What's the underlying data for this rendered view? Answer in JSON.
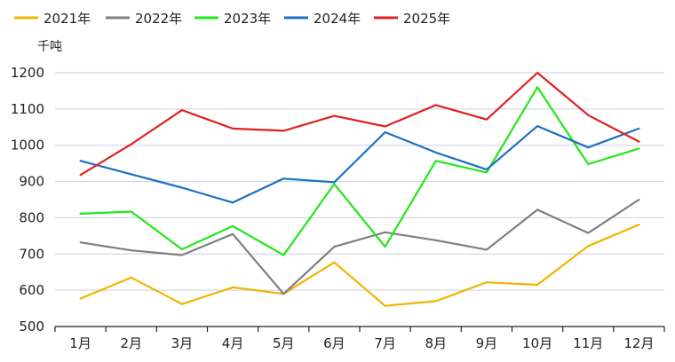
{
  "chart_data": {
    "type": "line",
    "title": "",
    "xlabel": "",
    "ylabel": "千吨",
    "categories": [
      "1月",
      "2月",
      "3月",
      "4月",
      "5月",
      "6月",
      "7月",
      "8月",
      "9月",
      "10月",
      "11月",
      "12月"
    ],
    "ylim": [
      500,
      1200
    ],
    "yticks": [
      500,
      600,
      700,
      800,
      900,
      1000,
      1100,
      1200
    ],
    "grid": true,
    "legend_position": "top-left",
    "series": [
      {
        "name": "2021年",
        "color": "#F0B400",
        "values": [
          577,
          635,
          562,
          608,
          590,
          677,
          557,
          570,
          622,
          615,
          722,
          781
        ]
      },
      {
        "name": "2022年",
        "color": "#7F7F7F",
        "values": [
          732,
          710,
          697,
          755,
          590,
          720,
          760,
          738,
          712,
          822,
          758,
          850
        ]
      },
      {
        "name": "2023年",
        "color": "#22E81A",
        "values": [
          811,
          817,
          713,
          777,
          697,
          893,
          720,
          957,
          925,
          1160,
          948,
          991
        ]
      },
      {
        "name": "2024年",
        "color": "#1E6FC0",
        "values": [
          957,
          920,
          883,
          842,
          908,
          898,
          1036,
          980,
          933,
          1053,
          994,
          1046
        ]
      },
      {
        "name": "2025年",
        "color": "#E02020",
        "values": [
          918,
          1003,
          1097,
          1046,
          1040,
          1081,
          1052,
          1111,
          1071,
          1200,
          1083,
          1010
        ]
      }
    ]
  }
}
